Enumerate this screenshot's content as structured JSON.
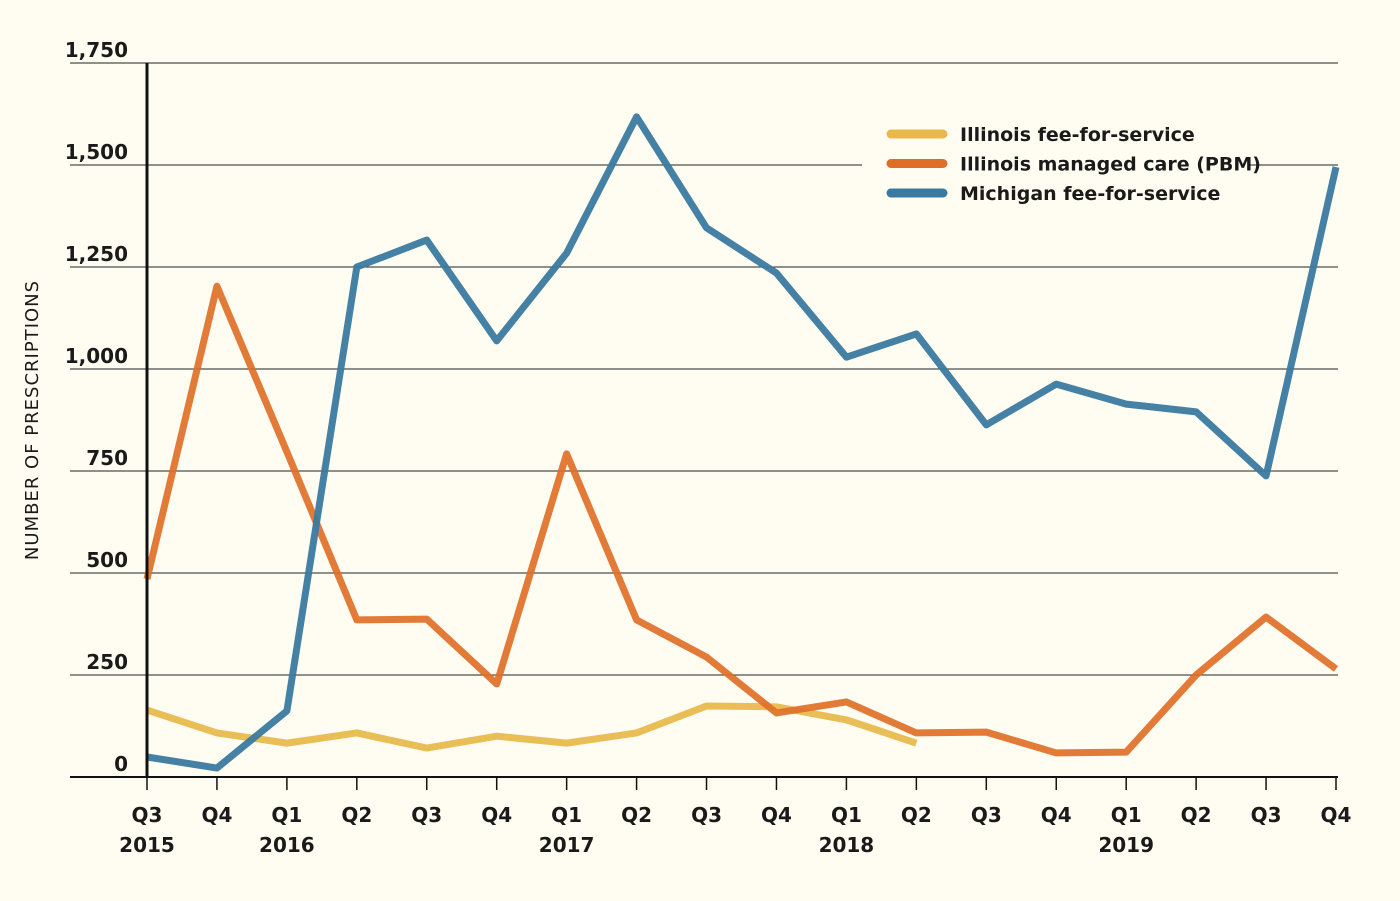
{
  "chart_data": {
    "type": "line",
    "title": "",
    "xlabel": "",
    "ylabel": "NUMBER OF PRESCRIPTIONS",
    "ylim": [
      0,
      1750
    ],
    "yticks": [
      0,
      250,
      500,
      750,
      1000,
      1250,
      1500,
      1750
    ],
    "ytick_labels": [
      "0",
      "250",
      "500",
      "750",
      "1,000",
      "1,250",
      "1,500",
      "1,750"
    ],
    "grid": true,
    "legend": "top-right",
    "categories": [
      "Q3",
      "Q4",
      "Q1",
      "Q2",
      "Q3",
      "Q4",
      "Q1",
      "Q2",
      "Q3",
      "Q4",
      "Q1",
      "Q2",
      "Q3",
      "Q4",
      "Q1",
      "Q2",
      "Q3",
      "Q4"
    ],
    "year_labels": [
      {
        "index": 0,
        "label": "2015"
      },
      {
        "index": 2,
        "label": "2016"
      },
      {
        "index": 6,
        "label": "2017"
      },
      {
        "index": 10,
        "label": "2018"
      },
      {
        "index": 14,
        "label": "2019"
      }
    ],
    "series": [
      {
        "name": "Illinois fee-for-service",
        "color": "#e8b94a",
        "values": [
          164,
          108,
          83,
          108,
          71,
          100,
          83,
          108,
          174,
          172,
          140,
          83,
          null,
          null,
          null,
          null,
          null,
          null
        ]
      },
      {
        "name": "Illinois managed care (PBM)",
        "color": "#df6f28",
        "values": [
          485,
          1203,
          797,
          385,
          387,
          228,
          792,
          385,
          294,
          157,
          184,
          108,
          110,
          59,
          61,
          250,
          392,
          265
        ]
      },
      {
        "name": "Michigan fee-for-service",
        "color": "#3b7aa0",
        "values": [
          49,
          22,
          162,
          1250,
          1316,
          1069,
          1284,
          1618,
          1346,
          1235,
          1029,
          1086,
          863,
          963,
          914,
          895,
          738,
          1495
        ]
      }
    ]
  }
}
